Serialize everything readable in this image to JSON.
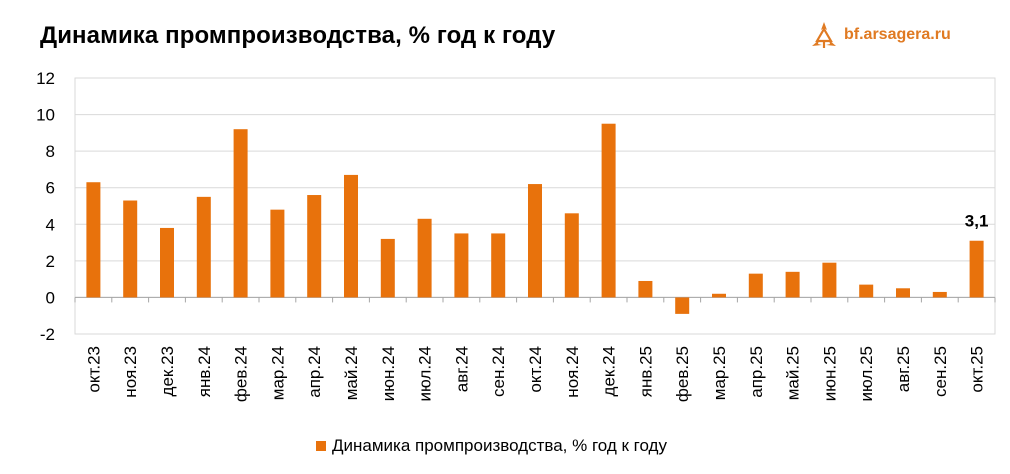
{
  "title": "Динамика промпроизводства, % год к году",
  "logo": {
    "text": "bf.arsagera.ru",
    "icon": "arsagera-logo-icon"
  },
  "colors": {
    "bar": "#e8720c",
    "grid": "#d9d9d9",
    "logo": "#e07a22"
  },
  "chart_data": {
    "type": "bar",
    "title": "Динамика промпроизводства, % год к году",
    "xlabel": "",
    "ylabel": "",
    "ylim": [
      -2,
      12
    ],
    "yticks": [
      -2,
      0,
      2,
      4,
      6,
      8,
      10,
      12
    ],
    "grid": true,
    "legend_position": "bottom",
    "categories": [
      "окт.23",
      "ноя.23",
      "дек.23",
      "янв.24",
      "фев.24",
      "мар.24",
      "апр.24",
      "май.24",
      "июн.24",
      "июл.24",
      "авг.24",
      "сен.24",
      "окт.24",
      "ноя.24",
      "дек.24",
      "янв.25",
      "фев.25",
      "мар.25",
      "апр.25",
      "май.25",
      "июн.25",
      "июл.25",
      "авг.25",
      "сен.25",
      "окт.25"
    ],
    "series": [
      {
        "name": "Динамика промпроизводства, % год к году",
        "values": [
          6.3,
          5.3,
          3.8,
          5.5,
          9.2,
          4.8,
          5.6,
          6.7,
          3.2,
          4.3,
          3.5,
          3.5,
          6.2,
          4.6,
          9.5,
          0.9,
          -0.9,
          0.2,
          1.3,
          1.4,
          1.9,
          0.7,
          0.5,
          0.3,
          3.1
        ]
      }
    ],
    "annotations": [
      {
        "category": "окт.25",
        "text": "3,1"
      }
    ]
  }
}
